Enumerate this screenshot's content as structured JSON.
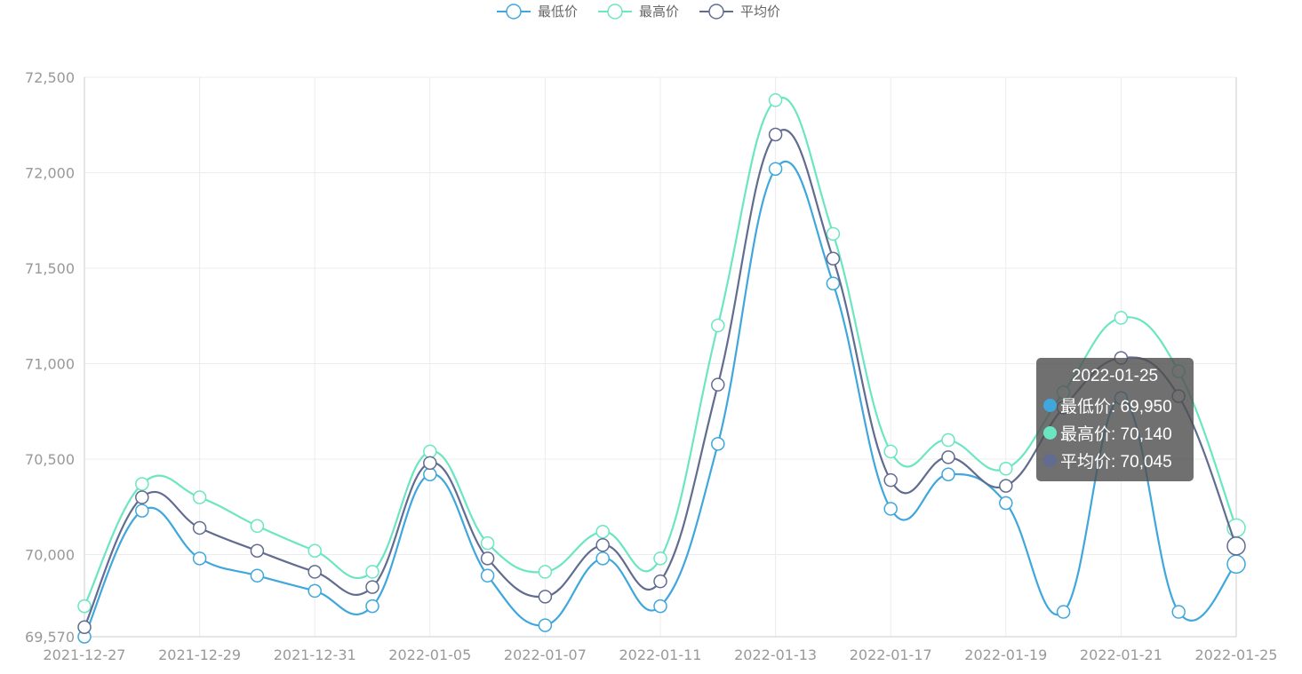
{
  "chart_data": {
    "type": "line",
    "title": "",
    "xlabel": "",
    "ylabel": "",
    "smooth": true,
    "grid": true,
    "legend_position": "top",
    "x": [
      "2021-12-27",
      "2021-12-28",
      "2021-12-29",
      "2021-12-30",
      "2021-12-31",
      "2022-01-01",
      "2022-01-05",
      "2022-01-06",
      "2022-01-07",
      "2022-01-08",
      "2022-01-11",
      "2022-01-12",
      "2022-01-13",
      "2022-01-14",
      "2022-01-17",
      "2022-01-18",
      "2022-01-19",
      "2022-01-20",
      "2022-01-21",
      "2022-01-24",
      "2022-01-25"
    ],
    "x_tick_labels": [
      "2021-12-27",
      "2021-12-29",
      "2021-12-31",
      "2022-01-05",
      "2022-01-07",
      "2022-01-11",
      "2022-01-13",
      "2022-01-17",
      "2022-01-19",
      "2022-01-21",
      "2022-01-25"
    ],
    "y_ticks": [
      "69,570",
      "70,000",
      "70,500",
      "71,000",
      "71,500",
      "72,000",
      "72,500"
    ],
    "y_tick_values": [
      69570,
      70000,
      70500,
      71000,
      71500,
      72000,
      72500
    ],
    "ylim": [
      69570,
      72500
    ],
    "series": [
      {
        "name": "最低价",
        "color": "#3fa7dc",
        "values": [
          69570,
          70230,
          69980,
          69890,
          69810,
          69730,
          70420,
          69890,
          69630,
          69980,
          69730,
          70580,
          72020,
          71420,
          70240,
          70420,
          70270,
          69700,
          70820,
          69700,
          69950
        ]
      },
      {
        "name": "最高价",
        "color": "#6be6c1",
        "values": [
          69730,
          70370,
          70300,
          70150,
          70020,
          69910,
          70540,
          70060,
          69910,
          70120,
          69980,
          71200,
          72380,
          71680,
          70540,
          70600,
          70450,
          70850,
          71240,
          70960,
          70140
        ]
      },
      {
        "name": "平均价",
        "color": "#626c91",
        "values": [
          69620,
          70300,
          70140,
          70020,
          69910,
          69830,
          70480,
          69980,
          69780,
          70050,
          69860,
          70890,
          72200,
          71550,
          70390,
          70510,
          70360,
          70770,
          71030,
          70830,
          70045
        ]
      }
    ]
  },
  "tooltip": {
    "title": "2022-01-25",
    "rows": [
      {
        "label": "最低价: 69,950",
        "color": "#3fa7dc"
      },
      {
        "label": "最高价: 70,140",
        "color": "#6be6c1"
      },
      {
        "label": "平均价: 70,045",
        "color": "#626c91"
      }
    ]
  }
}
